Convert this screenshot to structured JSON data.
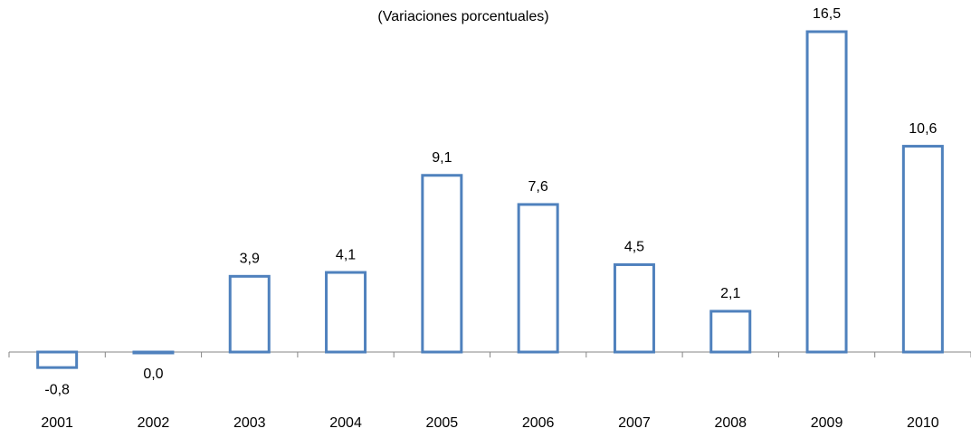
{
  "chart_data": {
    "type": "bar",
    "title": "(Variaciones porcentuales)",
    "categories": [
      "2001",
      "2002",
      "2003",
      "2004",
      "2005",
      "2006",
      "2007",
      "2008",
      "2009",
      "2010"
    ],
    "values": [
      -0.8,
      0.0,
      3.9,
      4.1,
      9.1,
      7.6,
      4.5,
      2.1,
      16.5,
      10.6
    ],
    "value_labels": [
      "-0,8",
      "0,0",
      "3,9",
      "4,1",
      "9,1",
      "7,6",
      "4,5",
      "2,1",
      "16,5",
      "10,6"
    ],
    "color": "#4f81bd"
  }
}
